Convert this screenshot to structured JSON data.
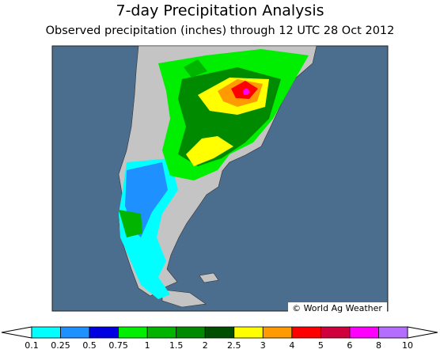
{
  "header": {
    "title": "7-day Precipitation Analysis",
    "subtitle": "Observed precipitation (inches) through 12 UTC 28 Oct 2012"
  },
  "map": {
    "credit": "© World Ag Weather"
  },
  "legend": {
    "ticks": [
      0.1,
      0.25,
      0.5,
      0.75,
      1,
      1.5,
      2,
      2.5,
      3,
      4,
      5,
      6,
      8,
      10
    ],
    "colors": [
      "#00ffff",
      "#1e90ff",
      "#0000e0",
      "#00ee00",
      "#00b400",
      "#008a00",
      "#004e00",
      "#ffff00",
      "#ff9a00",
      "#ff0000",
      "#d0003c",
      "#ff00ff",
      "#b46eff"
    ]
  }
}
